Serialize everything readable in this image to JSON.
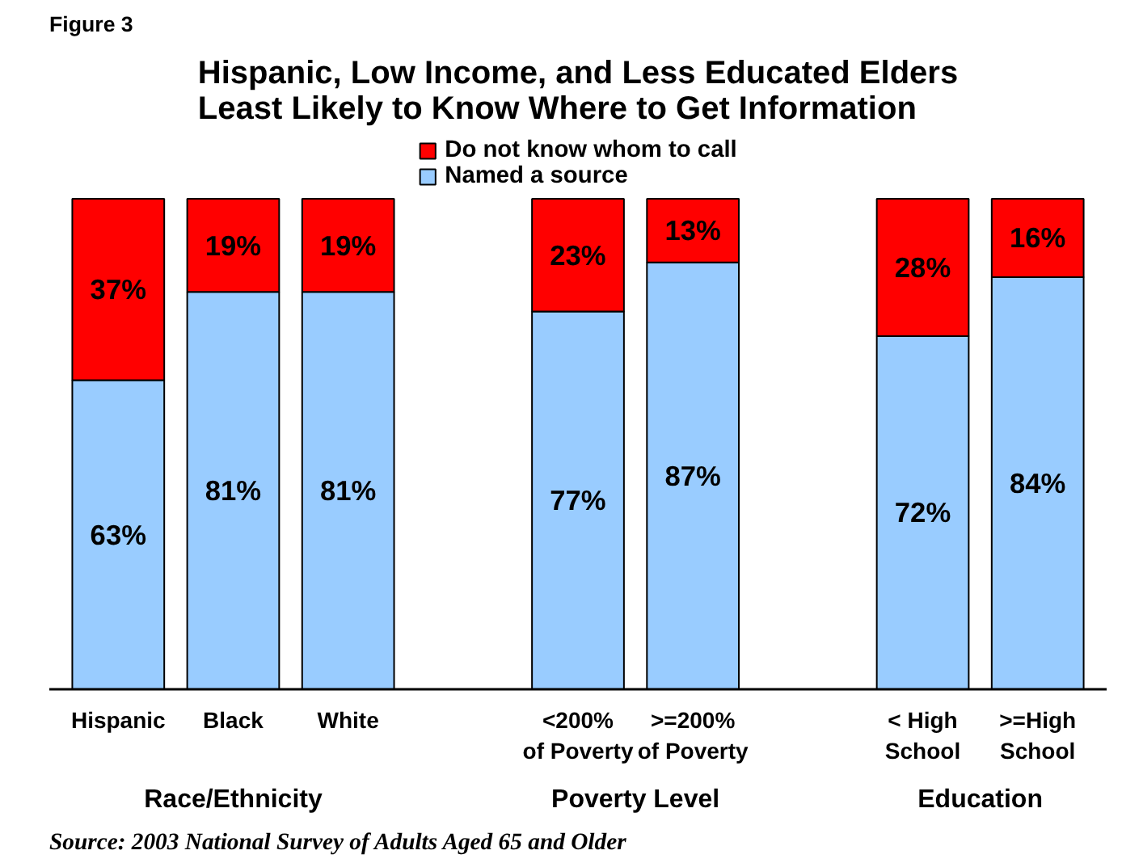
{
  "chart_data": {
    "type": "bar",
    "subtitle": "Figure 3",
    "title": "Hispanic, Low Income, and Less Educated Elders\nLeast Likely to Know Where to Get Information",
    "categories": [
      "Hispanic",
      "Black",
      "White",
      null,
      "<200%\nof Poverty",
      ">=200%\nof Poverty",
      null,
      "< High\nSchool",
      ">=High\nSchool"
    ],
    "series": [
      {
        "name": "Named a source",
        "color": "#99ccff",
        "values": [
          63,
          81,
          81,
          null,
          77,
          87,
          null,
          72,
          84
        ],
        "value_labels": [
          "63%",
          "81%",
          "81%",
          null,
          "77%",
          "87%",
          null,
          "72%",
          "84%"
        ]
      },
      {
        "name": "Do not know whom to call",
        "color": "#ff0000",
        "values": [
          37,
          19,
          19,
          null,
          23,
          13,
          null,
          28,
          16
        ],
        "value_labels": [
          "37%",
          "19%",
          "19%",
          null,
          "23%",
          "13%",
          null,
          "28%",
          "16%"
        ]
      }
    ],
    "stacked": true,
    "legend": "top",
    "annotations": [
      "Race/Ethnicity",
      "Poverty Level",
      "Education",
      "Source: 2003 National Survey of Adults Aged 65 and Older"
    ]
  }
}
